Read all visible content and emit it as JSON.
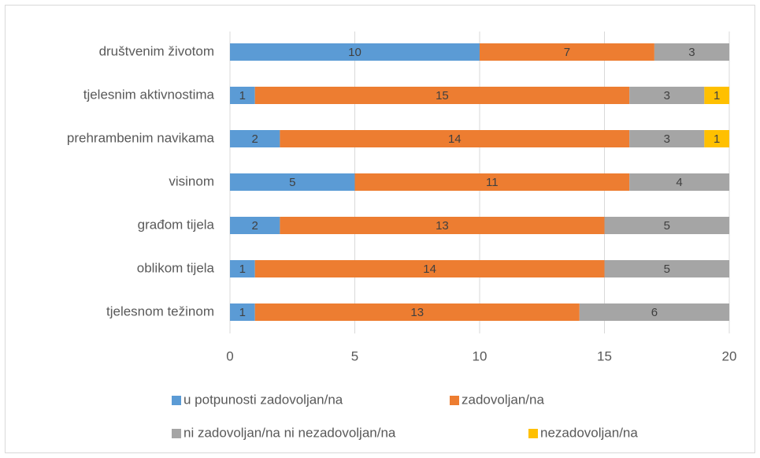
{
  "chart_data": {
    "type": "bar",
    "orientation": "horizontal",
    "stacked": true,
    "categories": [
      "društvenim životom",
      "tjelesnim aktivnostima",
      "prehrambenim navikama",
      "visinom",
      "građom tijela",
      "oblikom tijela",
      "tjelesnom težinom"
    ],
    "series": [
      {
        "name": "u potpunosti zadovoljan/na",
        "color": "#5b9bd5",
        "values": [
          10,
          1,
          2,
          5,
          2,
          1,
          1
        ]
      },
      {
        "name": "zadovoljan/na",
        "color": "#ed7d31",
        "values": [
          7,
          15,
          14,
          11,
          13,
          14,
          13
        ]
      },
      {
        "name": "ni zadovoljan/na ni nezadovoljan/na",
        "color": "#a5a5a5",
        "values": [
          3,
          3,
          3,
          4,
          5,
          5,
          6
        ]
      },
      {
        "name": "nezadovoljan/na",
        "color": "#ffc000",
        "values": [
          null,
          1,
          1,
          null,
          null,
          null,
          null
        ]
      }
    ],
    "xlim": [
      0,
      20
    ],
    "xticks": [
      0,
      5,
      10,
      15,
      20
    ],
    "grid": true,
    "legend": "bottom"
  }
}
